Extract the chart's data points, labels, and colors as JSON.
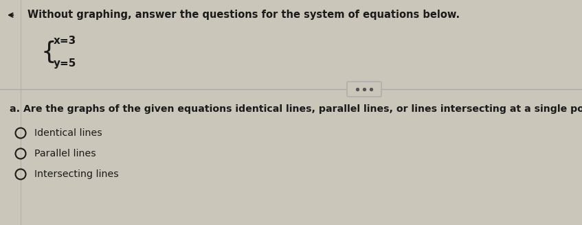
{
  "background_color": "#cac6ba",
  "title_text": "Without graphing, answer the questions for the system of equations below.",
  "title_fontsize": 10.5,
  "eq1": "x=3",
  "eq2": "y=5",
  "eq_fontsize": 11,
  "question_text": "a. Are the graphs of the given equations identical lines, parallel lines, or lines intersecting at a single point?",
  "question_fontsize": 10.2,
  "options": [
    "Identical lines",
    "Parallel lines",
    "Intersecting lines"
  ],
  "options_fontsize": 10.2,
  "text_color": "#1a1a1a",
  "divider_color": "#aaaaaa",
  "btn_dots_color": "#555555",
  "btn_border_color": "#aaaaaa"
}
